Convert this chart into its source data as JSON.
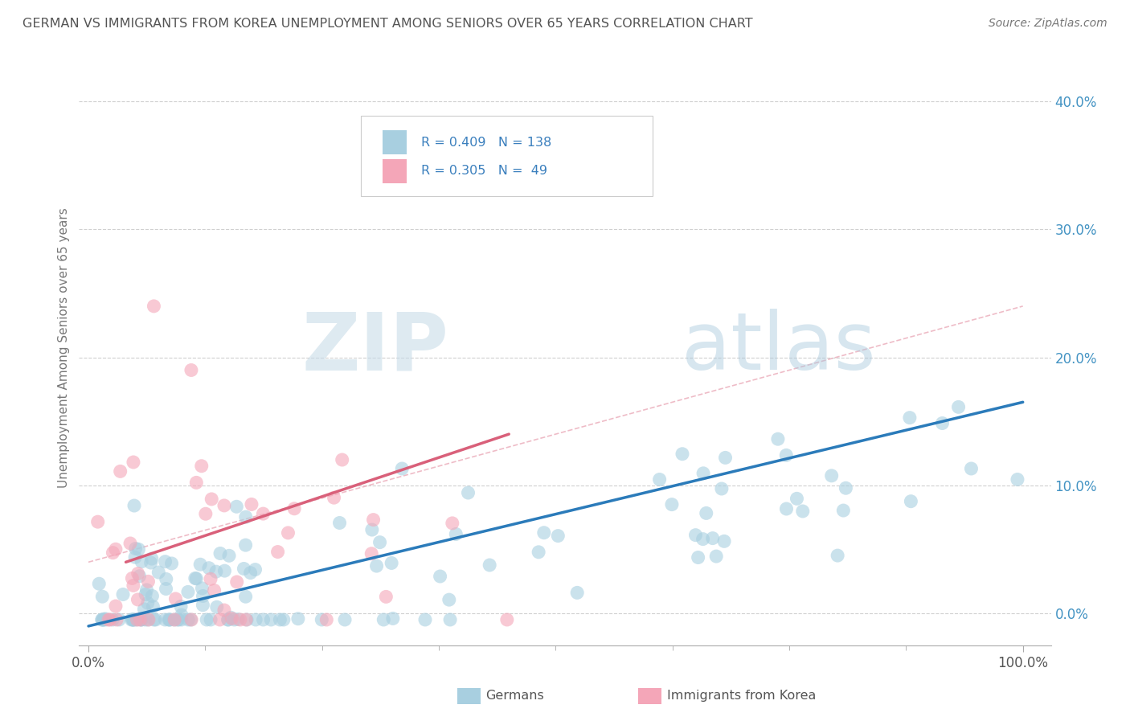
{
  "title": "GERMAN VS IMMIGRANTS FROM KOREA UNEMPLOYMENT AMONG SENIORS OVER 65 YEARS CORRELATION CHART",
  "source": "Source: ZipAtlas.com",
  "ylabel": "Unemployment Among Seniors over 65 years",
  "ytick_vals": [
    0.0,
    0.1,
    0.2,
    0.3,
    0.4
  ],
  "legend_label1": "Germans",
  "legend_label2": "Immigrants from Korea",
  "color_german": "#a8cfe0",
  "color_korea": "#f4a6b8",
  "color_german_line": "#2b7bba",
  "color_korea_line": "#d9607a",
  "background": "#ffffff",
  "grid_color": "#d0d0d0",
  "title_color": "#666666",
  "axis_color": "#999999",
  "tick_color": "#4393c3",
  "watermark_color": "#d8e8f0",
  "watermark_text_ZIP": "ZIP",
  "watermark_text_atlas": "atlas"
}
